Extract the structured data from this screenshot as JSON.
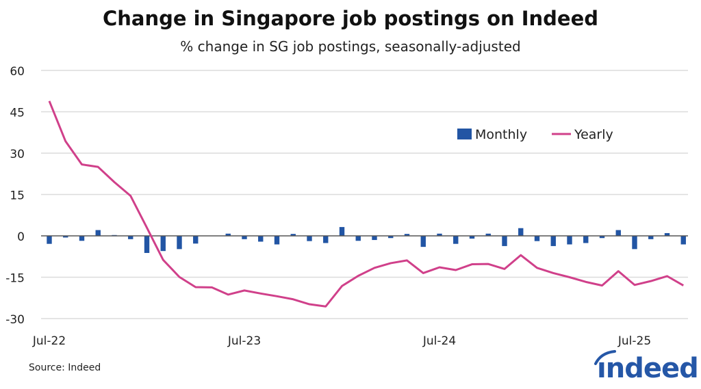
{
  "chart_data": {
    "type": "bar+line",
    "title": "Change in Singapore job postings on Indeed",
    "subtitle": "% change in SG job postings, seasonally-adjusted",
    "source": "Source: Indeed",
    "logo": "indeed",
    "ylim": [
      -30,
      60
    ],
    "yticks": [
      60,
      45,
      30,
      15,
      0,
      -15,
      -30
    ],
    "grid": true,
    "legend_placement": "upper-right",
    "x_tick_labels": [
      {
        "label": "Jul-22",
        "index": 0
      },
      {
        "label": "Jul-23",
        "index": 12
      },
      {
        "label": "Jul-24",
        "index": 24
      },
      {
        "label": "Jul-25",
        "index": 36
      }
    ],
    "x": [
      "Jul-22",
      "Aug-22",
      "Sep-22",
      "Oct-22",
      "Nov-22",
      "Dec-22",
      "Jan-23",
      "Feb-23",
      "Mar-23",
      "Apr-23",
      "May-23",
      "Jun-23",
      "Jul-23",
      "Aug-23",
      "Sep-23",
      "Oct-23",
      "Nov-23",
      "Dec-23",
      "Jan-24",
      "Feb-24",
      "Mar-24",
      "Apr-24",
      "May-24",
      "Jun-24",
      "Jul-24",
      "Aug-24",
      "Sep-24",
      "Oct-24",
      "Nov-24",
      "Dec-24",
      "Jan-25",
      "Feb-25",
      "Mar-25",
      "Apr-25",
      "May-25",
      "Jun-25",
      "Jul-25",
      "Aug-25",
      "Sep-25",
      "Oct-25"
    ],
    "series": [
      {
        "name": "Monthly",
        "type": "bar",
        "color": "#2255a4",
        "values": [
          -2.9,
          -0.6,
          -1.8,
          2.1,
          0.3,
          -1.2,
          -6.2,
          -5.5,
          -4.8,
          -2.8,
          0,
          0.8,
          -1.2,
          -2.1,
          -3.1,
          0.7,
          -1.9,
          -2.6,
          3.2,
          -1.8,
          -1.5,
          -0.8,
          0.7,
          -4.0,
          0.8,
          -2.9,
          -1.0,
          0.8,
          -3.7,
          2.8,
          -1.9,
          -3.7,
          -3.1,
          -2.6,
          -0.8,
          2.1,
          -4.8,
          -1.2,
          1.0,
          -3.1
        ]
      },
      {
        "name": "Yearly",
        "type": "line",
        "color": "#d0408a",
        "values": [
          48.9,
          34.3,
          25.9,
          25.0,
          19.5,
          14.5,
          3.0,
          -8.7,
          -14.9,
          -18.6,
          -18.7,
          -21.3,
          -19.8,
          -20.9,
          -21.9,
          -23.0,
          -24.8,
          -25.6,
          -18.2,
          -14.5,
          -11.6,
          -9.9,
          -8.9,
          -13.5,
          -11.4,
          -12.4,
          -10.3,
          -10.2,
          -12.0,
          -7.0,
          -11.6,
          -13.5,
          -15.0,
          -16.7,
          -18.0,
          -12.8,
          -17.8,
          -16.4,
          -14.6,
          -18.0
        ]
      }
    ]
  }
}
